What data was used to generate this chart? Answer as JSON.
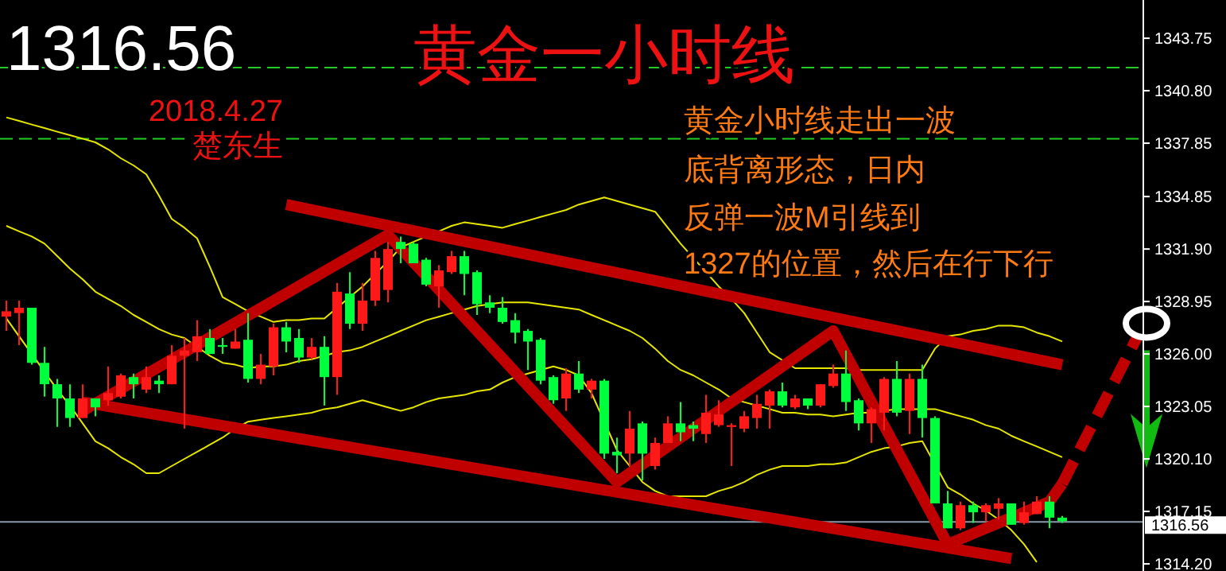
{
  "chart_data": {
    "type": "candlestick",
    "title": "黄金一小时线",
    "annotations": [
      "1316.56",
      "2018.4.27",
      "楚东生",
      "黄金小时线走出一波",
      "底背离形态，日内",
      "反弹一波M引线到",
      "1327的位置，然后在行下行"
    ],
    "categories": [
      null,
      null,
      null,
      null,
      null,
      null,
      null,
      null,
      null,
      null,
      null,
      null,
      null,
      null,
      null,
      null,
      null,
      null,
      null,
      null,
      null,
      null,
      null,
      null,
      null,
      null,
      null,
      null,
      null,
      null,
      null,
      null,
      null,
      null,
      null,
      null,
      null,
      null,
      null,
      null,
      null,
      null,
      null,
      null,
      null,
      null,
      null,
      null,
      null,
      null,
      null,
      null,
      null,
      null,
      null,
      null,
      null,
      null,
      null,
      null,
      null,
      null,
      null,
      null,
      null,
      null,
      null,
      null,
      null,
      null,
      null,
      null,
      null,
      null,
      null,
      null,
      null,
      null,
      null,
      null,
      null,
      null,
      null,
      null
    ],
    "ohlc": [
      [
        1328.1,
        1329.0,
        1327.3,
        1328.4
      ],
      [
        1328.3,
        1329.0,
        1326.5,
        1328.6
      ],
      [
        1328.6,
        1328.6,
        1325.4,
        1325.5
      ],
      [
        1325.5,
        1326.4,
        1323.6,
        1324.3
      ],
      [
        1324.3,
        1324.6,
        1321.9,
        1323.5
      ],
      [
        1323.5,
        1324.3,
        1321.9,
        1322.4
      ],
      [
        1322.4,
        1324.3,
        1322.4,
        1323.5
      ],
      [
        1323.5,
        1323.5,
        1322.5,
        1323.0
      ],
      [
        1323.4,
        1325.3,
        1323.1,
        1323.8
      ],
      [
        1323.6,
        1324.9,
        1323.5,
        1324.8
      ],
      [
        1324.7,
        1324.9,
        1323.5,
        1324.3
      ],
      [
        1324.0,
        1325.3,
        1323.8,
        1324.7
      ],
      [
        1324.5,
        1324.8,
        1323.8,
        1324.3
      ],
      [
        1324.3,
        1326.5,
        1324.3,
        1325.9
      ],
      [
        1325.9,
        1326.9,
        1321.8,
        1326.2
      ],
      [
        1326.1,
        1327.9,
        1325.6,
        1327.0
      ],
      [
        1326.9,
        1327.4,
        1326.0,
        1326.0
      ],
      [
        1326.5,
        1326.9,
        1326.0,
        1326.4
      ],
      [
        1326.3,
        1327.4,
        1326.3,
        1326.7
      ],
      [
        1326.8,
        1328.3,
        1324.4,
        1324.6
      ],
      [
        1324.6,
        1326.0,
        1324.3,
        1325.4
      ],
      [
        1325.3,
        1327.7,
        1324.8,
        1327.5
      ],
      [
        1327.5,
        1327.8,
        1326.1,
        1326.7
      ],
      [
        1326.9,
        1327.4,
        1325.5,
        1325.8
      ],
      [
        1325.8,
        1326.9,
        1325.7,
        1326.4
      ],
      [
        1326.4,
        1327.0,
        1323.1,
        1324.7
      ],
      [
        1324.7,
        1330.0,
        1323.7,
        1329.5
      ],
      [
        1329.4,
        1330.6,
        1327.4,
        1327.7
      ],
      [
        1327.7,
        1330.0,
        1327.3,
        1329.0
      ],
      [
        1329.0,
        1331.8,
        1328.7,
        1331.4
      ],
      [
        1329.6,
        1332.3,
        1328.9,
        1331.9
      ],
      [
        1332.3,
        1332.6,
        1331.1,
        1331.9
      ],
      [
        1332.2,
        1332.3,
        1331.1,
        1331.1
      ],
      [
        1331.3,
        1331.4,
        1329.8,
        1329.9
      ],
      [
        1329.8,
        1331.0,
        1328.6,
        1330.7
      ],
      [
        1330.6,
        1331.8,
        1330.5,
        1331.5
      ],
      [
        1331.5,
        1331.8,
        1329.3,
        1330.5
      ],
      [
        1330.6,
        1330.7,
        1328.2,
        1328.8
      ],
      [
        1328.9,
        1329.3,
        1328.3,
        1328.6
      ],
      [
        1328.6,
        1329.2,
        1327.7,
        1327.8
      ],
      [
        1327.9,
        1328.3,
        1326.6,
        1327.2
      ],
      [
        1327.3,
        1327.4,
        1325.1,
        1326.7
      ],
      [
        1326.8,
        1326.9,
        1324.3,
        1324.5
      ],
      [
        1324.7,
        1324.8,
        1323.2,
        1323.4
      ],
      [
        1323.5,
        1325.2,
        1322.8,
        1324.9
      ],
      [
        1324.9,
        1325.6,
        1323.8,
        1324.0
      ],
      [
        1324.0,
        1324.6,
        1323.5,
        1324.5
      ],
      [
        1324.5,
        1324.6,
        1320.1,
        1320.4
      ],
      [
        1320.5,
        1321.3,
        1319.3,
        1320.3
      ],
      [
        1320.4,
        1322.8,
        1319.7,
        1321.8
      ],
      [
        1322.1,
        1322.2,
        1318.9,
        1320.4
      ],
      [
        1319.7,
        1321.3,
        1319.5,
        1321.0
      ],
      [
        1321.0,
        1322.5,
        1321.0,
        1322.1
      ],
      [
        1322.1,
        1323.3,
        1321.1,
        1321.6
      ],
      [
        1322.0,
        1322.2,
        1321.1,
        1321.8
      ],
      [
        1321.5,
        1323.7,
        1321.0,
        1322.7
      ],
      [
        1322.0,
        1323.4,
        1321.9,
        1322.6
      ],
      [
        1321.9,
        1322.1,
        1319.7,
        1322.0
      ],
      [
        1321.8,
        1322.8,
        1321.6,
        1322.5
      ],
      [
        1322.4,
        1323.7,
        1321.8,
        1323.2
      ],
      [
        1323.1,
        1324.0,
        1321.8,
        1323.9
      ],
      [
        1323.9,
        1324.4,
        1323.0,
        1323.1
      ],
      [
        1323.0,
        1323.7,
        1322.9,
        1323.5
      ],
      [
        1323.5,
        1323.5,
        1322.9,
        1323.1
      ],
      [
        1323.1,
        1324.3,
        1323.0,
        1324.3
      ],
      [
        1324.2,
        1325.4,
        1324.1,
        1324.9
      ],
      [
        1324.9,
        1326.2,
        1322.8,
        1323.3
      ],
      [
        1323.4,
        1323.5,
        1321.7,
        1322.1
      ],
      [
        1322.1,
        1323.0,
        1321.0,
        1322.9
      ],
      [
        1322.7,
        1324.7,
        1321.7,
        1324.6
      ],
      [
        1324.6,
        1325.6,
        1322.5,
        1322.7
      ],
      [
        1322.8,
        1324.9,
        1321.5,
        1324.6
      ],
      [
        1324.6,
        1325.4,
        1321.3,
        1322.4
      ],
      [
        1322.4,
        1322.5,
        1317.6,
        1317.6
      ],
      [
        1317.6,
        1318.3,
        1316.2,
        1316.2
      ],
      [
        1316.2,
        1317.7,
        1316.1,
        1317.5
      ],
      [
        1317.5,
        1317.7,
        1316.5,
        1317.1
      ],
      [
        1317.1,
        1317.6,
        1316.6,
        1317.5
      ],
      [
        1317.3,
        1317.9,
        1316.7,
        1317.6
      ],
      [
        1317.6,
        1317.6,
        1316.4,
        1316.4
      ],
      [
        1316.5,
        1317.7,
        1316.4,
        1317.1
      ],
      [
        1317.0,
        1318.0,
        1317.0,
        1317.7
      ],
      [
        1317.7,
        1318.0,
        1316.2,
        1316.8
      ],
      [
        1316.8,
        1316.9,
        1316.5,
        1316.6
      ]
    ],
    "colors": [
      "#ff1a1a",
      "#ff1a1a",
      "#00ff3c",
      "#00ff3c",
      "#00ff3c",
      "#00ff3c",
      "#ff1a1a",
      "#00ff3c",
      "#ff1a1a",
      "#ff1a1a",
      "#00ff3c",
      "#ff1a1a",
      "#00ff3c",
      "#ff1a1a",
      "#ff1a1a",
      "#ff1a1a",
      "#00ff3c",
      "#00ff3c",
      "#ff1a1a",
      "#00ff3c",
      "#ff1a1a",
      "#ff1a1a",
      "#00ff3c",
      "#00ff3c",
      "#ff1a1a",
      "#00ff3c",
      "#ff1a1a",
      "#00ff3c",
      "#ff1a1a",
      "#ff1a1a",
      "#ff1a1a",
      "#00ff3c",
      "#00ff3c",
      "#00ff3c",
      "#ff1a1a",
      "#ff1a1a",
      "#00ff3c",
      "#00ff3c",
      "#00ff3c",
      "#00ff3c",
      "#00ff3c",
      "#00ff3c",
      "#00ff3c",
      "#00ff3c",
      "#ff1a1a",
      "#00ff3c",
      "#ff1a1a",
      "#00ff3c",
      "#00ff3c",
      "#ff1a1a",
      "#00ff3c",
      "#ff1a1a",
      "#ff1a1a",
      "#00ff3c",
      "#00ff3c",
      "#ff1a1a",
      "#ff1a1a",
      "#ff1a1a",
      "#ff1a1a",
      "#ff1a1a",
      "#ff1a1a",
      "#00ff3c",
      "#ff1a1a",
      "#00ff3c",
      "#ff1a1a",
      "#ff1a1a",
      "#00ff3c",
      "#00ff3c",
      "#ff1a1a",
      "#ff1a1a",
      "#00ff3c",
      "#ff1a1a",
      "#00ff3c",
      "#00ff3c",
      "#00ff3c",
      "#ff1a1a",
      "#00ff3c",
      "#ff1a1a",
      "#ff1a1a",
      "#00ff3c",
      "#ff1a1a",
      "#ff1a1a",
      "#00ff3c",
      "#00ff3c"
    ],
    "series": [
      {
        "type": "line",
        "color": "#e6e600",
        "values": [
          1339.3,
          1339.1,
          1338.9,
          1338.7,
          1338.5,
          1338.3,
          1338.1,
          1337.9,
          1337.5,
          1337.0,
          1336.6,
          1336.1,
          1334.9,
          1333.6,
          1333.1,
          1332.5,
          1330.9,
          1329.2,
          1328.8,
          1328.4,
          1328.1,
          1327.8,
          1327.9,
          1327.9,
          1328.0,
          1328.0,
          1328.6,
          1329.2,
          1329.8,
          1330.5,
          1331.2,
          1332.0,
          1332.3,
          1332.6,
          1332.9,
          1333.2,
          1333.4,
          1333.3,
          1333.2,
          1333.1,
          1333.3,
          1333.5,
          1333.7,
          1333.9,
          1334.1,
          1334.4,
          1334.6,
          1334.8,
          1334.6,
          1334.4,
          1334.2,
          1334.0,
          1333.1,
          1332.2,
          1331.4,
          1330.6,
          1329.8,
          1329.1,
          1328.3,
          1327.2,
          1326.1,
          null,
          1325.2,
          1325.2,
          1325.2,
          1325.2,
          1325.2,
          1325.1,
          1325.1,
          1325.1,
          1325.1,
          1325.1,
          1325.1,
          1326.3,
          1327.0,
          1327.1,
          1327.3,
          1327.4,
          1327.6,
          1327.6,
          1327.5,
          1327.2,
          1327.0,
          1326.7
        ]
      },
      {
        "type": "line",
        "color": "#e6e600",
        "values": [
          1333.2,
          1332.9,
          1332.6,
          1332.2,
          1331.5,
          1330.8,
          1330.2,
          1329.5,
          1329.1,
          1328.7,
          1328.2,
          1327.8,
          1327.4,
          1327.1,
          1326.9,
          1326.4,
          1325.9,
          1325.5,
          1325.4,
          1325.2,
          1325.3,
          1325.3,
          1325.4,
          1325.6,
          1325.7,
          1325.9,
          1326.1,
          1326.2,
          1326.4,
          1326.7,
          1327.0,
          1327.3,
          1327.6,
          1327.9,
          1328.1,
          1328.3,
          1328.5,
          1328.7,
          1328.8,
          1328.9,
          1328.9,
          1328.9,
          1328.8,
          1328.7,
          1328.6,
          1328.5,
          1328.2,
          1327.9,
          1327.6,
          1327.3,
          1326.9,
          1326.3,
          1325.6,
          1325.1,
          1324.8,
          1324.4,
          1324.0,
          1323.5,
          1323.3,
          1323.1,
          1322.9,
          1322.7,
          1322.7,
          1322.6,
          1322.6,
          1322.5,
          1322.6,
          1322.7,
          1322.7,
          1322.8,
          1322.9,
          1322.9,
          1322.9,
          1322.9,
          1322.7,
          1322.5,
          1322.3,
          1322.0,
          1321.8,
          1321.4,
          1321.1,
          1320.8,
          1320.5,
          1320.2
        ]
      },
      {
        "type": "line",
        "color": "#e6e600",
        "values": [
          1328.0,
          1327.0,
          1326.0,
          null,
          1324.0,
          1323.1,
          1322.1,
          1321.1,
          1320.7,
          1320.2,
          1319.8,
          1319.3,
          1319.3,
          1319.7,
          1320.1,
          1320.5,
          1320.9,
          1321.3,
          1321.8,
          1322.2,
          1322.3,
          1322.4,
          1322.5,
          1322.6,
          1322.7,
          1322.9,
          1323.0,
          1323.2,
          1323.4,
          1323.2,
          1323.0,
          1322.8,
          1323.0,
          1323.3,
          1323.5,
          1323.6,
          1323.7,
          1323.9,
          1324.0,
          1324.4,
          1324.7,
          1324.9,
          1325.1,
          1325.3,
          1325.1,
          1324.8,
          1323.8,
          null,
          1320.6,
          1319.7,
          1318.8,
          1318.3,
          1318.0,
          1318.0,
          1318.0,
          1318.0,
          1318.3,
          1318.5,
          1318.8,
          1319.2,
          1319.5,
          1319.7,
          1319.7,
          1319.7,
          1319.8,
          1319.8,
          1319.9,
          1320.2,
          1320.5,
          1320.7,
          1320.8,
          1321.0,
          1321.1,
          null,
          1318.5,
          1318.1,
          1317.6,
          1317.2,
          1316.7,
          1316.1,
          1315.3,
          1314.3,
          null,
          null
        ]
      },
      {
        "type": "line",
        "color": "#c00000",
        "values": [
          null,
          null,
          null,
          null,
          null,
          null,
          null,
          null,
          null,
          null,
          null,
          null,
          null,
          null,
          null,
          null,
          null,
          null,
          null,
          null,
          null,
          null,
          1334.4,
          null,
          null,
          null,
          null,
          null,
          null,
          null,
          null,
          null,
          null,
          null,
          null,
          null,
          null,
          null,
          null,
          null,
          null,
          null,
          null,
          null,
          null,
          null,
          null,
          null,
          null,
          null,
          null,
          null,
          null,
          null,
          null,
          null,
          null,
          null,
          null,
          null,
          null,
          null,
          null,
          null,
          null,
          null,
          null,
          null,
          null,
          null,
          null,
          null,
          null,
          null,
          null,
          null,
          null,
          null,
          null,
          null,
          null,
          null,
          null,
          1325.4
        ]
      },
      {
        "type": "line",
        "color": "#c00000",
        "values": [
          null,
          null,
          null,
          null,
          null,
          null,
          1323.3,
          null,
          null,
          null,
          null,
          null,
          null,
          null,
          null,
          null,
          null,
          null,
          null,
          null,
          null,
          null,
          null,
          null,
          null,
          null,
          null,
          null,
          null,
          null,
          null,
          null,
          null,
          null,
          null,
          null,
          null,
          null,
          null,
          null,
          null,
          null,
          null,
          null,
          null,
          null,
          null,
          null,
          null,
          null,
          null,
          null,
          null,
          null,
          null,
          null,
          null,
          null,
          null,
          null,
          null,
          null,
          null,
          null,
          null,
          null,
          null,
          null,
          null,
          null,
          null,
          null,
          null,
          null,
          null,
          null,
          null,
          null,
          null,
          1314.5,
          null,
          null,
          null,
          null
        ]
      },
      {
        "type": "line",
        "color": "#c00000",
        "values": [
          null,
          null,
          null,
          null,
          null,
          null,
          1322.8,
          null,
          null,
          null,
          null,
          null,
          null,
          null,
          null,
          null,
          null,
          null,
          null,
          null,
          null,
          null,
          null,
          null,
          null,
          null,
          null,
          null,
          null,
          null,
          1332.7,
          null,
          null,
          null,
          null,
          null,
          null,
          null,
          null,
          null,
          null,
          null,
          null,
          null,
          null,
          null,
          null,
          null,
          1318.8,
          null,
          null,
          null,
          null,
          null,
          null,
          null,
          null,
          null,
          null,
          null,
          null,
          null,
          null,
          null,
          null,
          1327.3,
          null,
          null,
          null,
          null,
          null,
          null,
          null,
          null,
          1315.3,
          null,
          null,
          null,
          null,
          null,
          null,
          null,
          1317.7,
          null
        ]
      },
      {
        "type": "line",
        "color": "#c00000",
        "line_style": "dashed",
        "values": [
          null,
          null,
          null,
          null,
          null,
          null,
          null,
          null,
          null,
          null,
          null,
          null,
          null,
          null,
          null,
          null,
          null,
          null,
          null,
          null,
          null,
          null,
          null,
          null,
          null,
          null,
          null,
          null,
          null,
          null,
          null,
          null,
          null,
          null,
          null,
          null,
          null,
          null,
          null,
          null,
          null,
          null,
          null,
          null,
          null,
          null,
          null,
          null,
          null,
          null,
          null,
          null,
          null,
          null,
          null,
          null,
          null,
          null,
          null,
          null,
          null,
          null,
          null,
          null,
          null,
          null,
          null,
          null,
          null,
          null,
          null,
          null,
          null,
          null,
          null,
          null,
          null,
          null,
          null,
          null,
          null,
          null,
          1317.7,
          1318.7
        ]
      }
    ],
    "ylim": [
      1313.8,
      1345.9
    ],
    "yticks": [
      {
        "value": 1314.2,
        "label": "1314.20"
      },
      {
        "value": 1317.15,
        "label": "1317.15"
      },
      {
        "value": 1320.1,
        "label": "1320.10"
      },
      {
        "value": 1323.05,
        "label": "1323.05"
      },
      {
        "value": 1326,
        "label": "1326.00"
      },
      {
        "value": 1328.95,
        "label": "1328.95"
      },
      {
        "value": 1331.9,
        "label": "1331.90"
      },
      {
        "value": 1334.85,
        "label": "1334.85"
      },
      {
        "value": 1337.85,
        "label": "1337.85"
      },
      {
        "value": 1340.8,
        "label": "1340.80"
      },
      {
        "value": 1343.75,
        "label": "1343.75"
      }
    ],
    "ref_lines": [
      {
        "axis": "y",
        "value": 1342.1,
        "color": "#22cc22",
        "line_style": "dashed"
      },
      {
        "axis": "y",
        "value": 1338.1,
        "color": "#22cc22",
        "line_style": "dashed"
      },
      {
        "axis": "y",
        "value": 1316.56,
        "label": "1316.56",
        "color": "#8a9aa8"
      }
    ],
    "tick_labels": "y"
  }
}
